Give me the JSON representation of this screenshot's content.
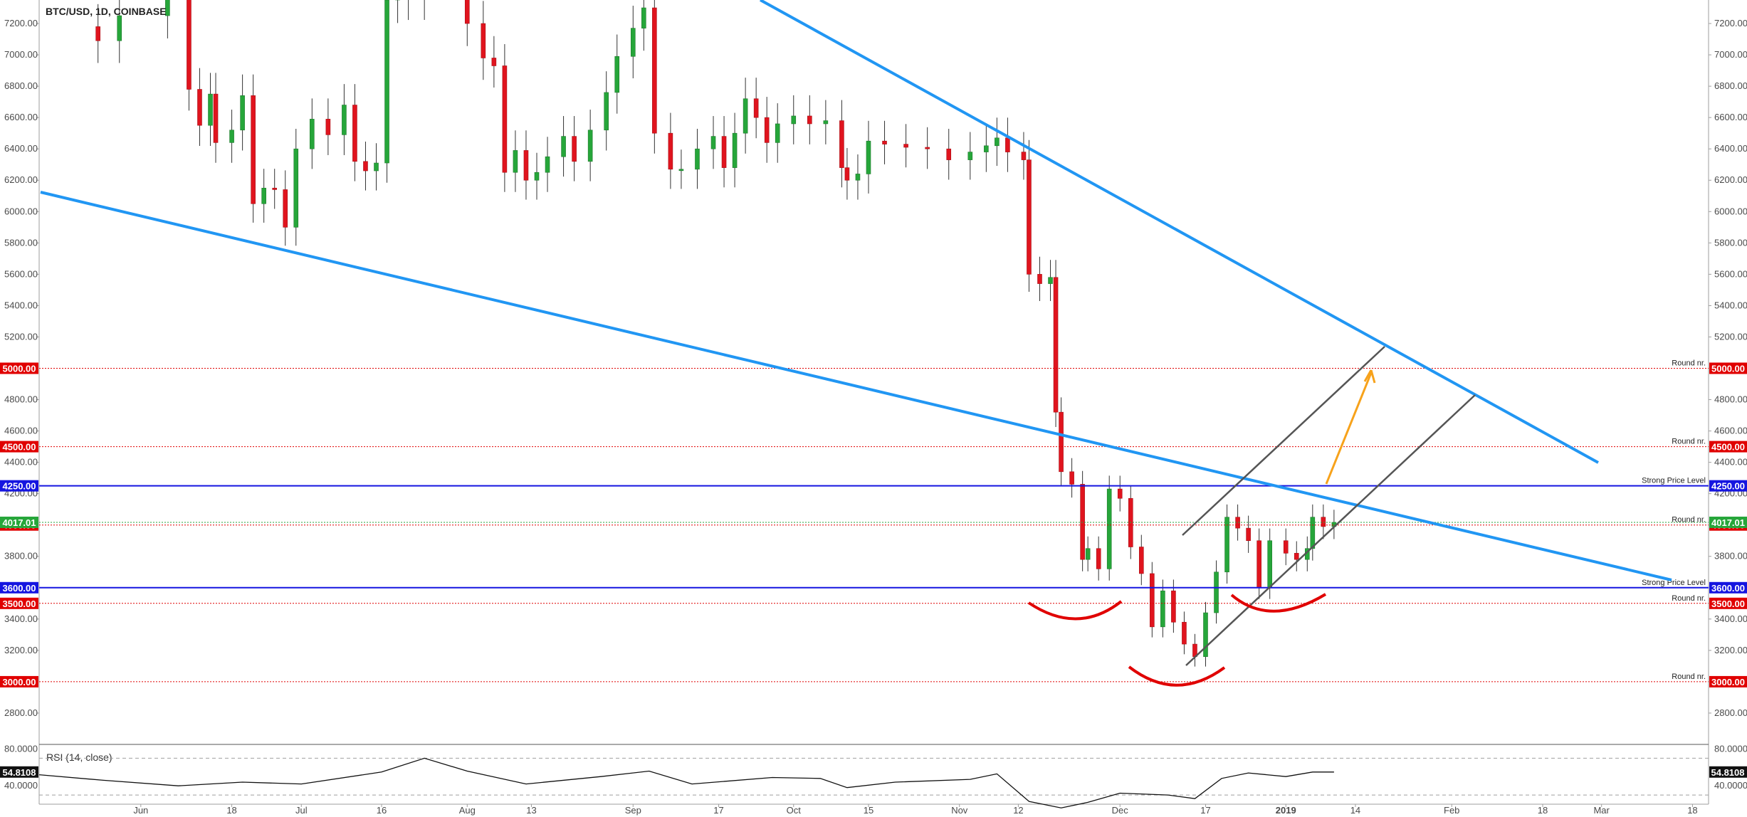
{
  "chart_data": {
    "type": "candlestick",
    "title": "BTC/USD, 1D, COINBASE",
    "ylim": [
      2600,
      7350
    ],
    "y_ticks": [
      "7200.00",
      "7000.00",
      "6800.00",
      "6600.00",
      "6400.00",
      "6200.00",
      "6000.00",
      "5800.00",
      "5600.00",
      "5400.00",
      "5200.00",
      "4800.00",
      "4600.00",
      "4400.00",
      "4200.00",
      "3800.00",
      "3400.00",
      "3200.00",
      "2800.00"
    ],
    "x_ticks": [
      "Jun",
      "18",
      "Jul",
      "16",
      "Aug",
      "13",
      "Sep",
      "17",
      "Oct",
      "15",
      "Nov",
      "12",
      "Dec",
      "17",
      "2019",
      "14",
      "Feb",
      "18",
      "Mar",
      "18"
    ],
    "x_tick_dates": [
      "2018-06-01",
      "2018-06-18",
      "2018-07-01",
      "2018-07-16",
      "2018-08-01",
      "2018-08-13",
      "2018-09-01",
      "2018-09-17",
      "2018-10-01",
      "2018-10-15",
      "2018-11-01",
      "2018-11-12",
      "2018-12-01",
      "2018-12-17",
      "2019-01-01",
      "2019-01-14",
      "2019-02-01",
      "2019-02-18",
      "2019-03-01",
      "2019-03-18"
    ],
    "x_range": [
      "2018-05-13",
      "2019-03-21"
    ],
    "current_price": {
      "label": "4017.01",
      "value": 4017.01
    },
    "levels": [
      {
        "value": 5000,
        "label": "5000.00",
        "note": "Round nr.",
        "kind": "round"
      },
      {
        "value": 4500,
        "label": "4500.00",
        "note": "Round nr.",
        "kind": "round"
      },
      {
        "value": 4250,
        "label": "4250.00",
        "note": "Strong Price Level",
        "kind": "strong"
      },
      {
        "value": 4000,
        "label": "4000.00",
        "note": "Round nr.",
        "kind": "round"
      },
      {
        "value": 3600,
        "label": "3600.00",
        "note": "Strong Price Level",
        "kind": "strong"
      },
      {
        "value": 3500,
        "label": "3500.00",
        "note": "Round nr.",
        "kind": "round"
      },
      {
        "value": 3000,
        "label": "3000.00",
        "note": "Round nr.",
        "kind": "round"
      }
    ],
    "candles_close": [
      [
        "2018-05-20",
        7180
      ],
      [
        "2018-05-24",
        7090
      ],
      [
        "2018-05-28",
        7250
      ],
      [
        "2018-06-06",
        7600
      ],
      [
        "2018-06-10",
        6780
      ],
      [
        "2018-06-12",
        6550
      ],
      [
        "2018-06-14",
        6750
      ],
      [
        "2018-06-15",
        6440
      ],
      [
        "2018-06-18",
        6520
      ],
      [
        "2018-06-20",
        6740
      ],
      [
        "2018-06-22",
        6050
      ],
      [
        "2018-06-24",
        6150
      ],
      [
        "2018-06-26",
        6140
      ],
      [
        "2018-06-28",
        5900
      ],
      [
        "2018-06-30",
        6400
      ],
      [
        "2018-07-03",
        6590
      ],
      [
        "2018-07-06",
        6490
      ],
      [
        "2018-07-09",
        6680
      ],
      [
        "2018-07-11",
        6320
      ],
      [
        "2018-07-13",
        6260
      ],
      [
        "2018-07-15",
        6310
      ],
      [
        "2018-07-17",
        7350
      ],
      [
        "2018-07-19",
        7450
      ],
      [
        "2018-07-21",
        7370
      ],
      [
        "2018-07-24",
        8300
      ],
      [
        "2018-07-28",
        8150
      ],
      [
        "2018-08-01",
        7200
      ],
      [
        "2018-08-04",
        6980
      ],
      [
        "2018-08-06",
        6930
      ],
      [
        "2018-08-08",
        6250
      ],
      [
        "2018-08-10",
        6390
      ],
      [
        "2018-08-12",
        6200
      ],
      [
        "2018-08-14",
        6250
      ],
      [
        "2018-08-16",
        6350
      ],
      [
        "2018-08-19",
        6480
      ],
      [
        "2018-08-21",
        6320
      ],
      [
        "2018-08-24",
        6520
      ],
      [
        "2018-08-27",
        6760
      ],
      [
        "2018-08-29",
        6990
      ],
      [
        "2018-09-01",
        7170
      ],
      [
        "2018-09-03",
        7300
      ],
      [
        "2018-09-05",
        6500
      ],
      [
        "2018-09-08",
        6270
      ],
      [
        "2018-09-10",
        6270
      ],
      [
        "2018-09-13",
        6400
      ],
      [
        "2018-09-16",
        6480
      ],
      [
        "2018-09-18",
        6280
      ],
      [
        "2018-09-20",
        6500
      ],
      [
        "2018-09-22",
        6720
      ],
      [
        "2018-09-24",
        6600
      ],
      [
        "2018-09-26",
        6440
      ],
      [
        "2018-09-28",
        6560
      ],
      [
        "2018-10-01",
        6610
      ],
      [
        "2018-10-04",
        6560
      ],
      [
        "2018-10-07",
        6580
      ],
      [
        "2018-10-10",
        6280
      ],
      [
        "2018-10-11",
        6200
      ],
      [
        "2018-10-13",
        6240
      ],
      [
        "2018-10-15",
        6450
      ],
      [
        "2018-10-18",
        6430
      ],
      [
        "2018-10-22",
        6410
      ],
      [
        "2018-10-26",
        6400
      ],
      [
        "2018-10-30",
        6330
      ],
      [
        "2018-11-03",
        6380
      ],
      [
        "2018-11-06",
        6420
      ],
      [
        "2018-11-08",
        6470
      ],
      [
        "2018-11-10",
        6380
      ],
      [
        "2018-11-13",
        6330
      ],
      [
        "2018-11-14",
        5600
      ],
      [
        "2018-11-16",
        5540
      ],
      [
        "2018-11-18",
        5580
      ],
      [
        "2018-11-19",
        4720
      ],
      [
        "2018-11-20",
        4340
      ],
      [
        "2018-11-22",
        4260
      ],
      [
        "2018-11-24",
        3780
      ],
      [
        "2018-11-25",
        3850
      ],
      [
        "2018-11-27",
        3720
      ],
      [
        "2018-11-29",
        4230
      ],
      [
        "2018-12-01",
        4170
      ],
      [
        "2018-12-03",
        3860
      ],
      [
        "2018-12-05",
        3690
      ],
      [
        "2018-12-07",
        3350
      ],
      [
        "2018-12-09",
        3580
      ],
      [
        "2018-12-11",
        3380
      ],
      [
        "2018-12-13",
        3240
      ],
      [
        "2018-12-15",
        3160
      ],
      [
        "2018-12-17",
        3440
      ],
      [
        "2018-12-19",
        3700
      ],
      [
        "2018-12-21",
        4050
      ],
      [
        "2018-12-23",
        3980
      ],
      [
        "2018-12-25",
        3900
      ],
      [
        "2018-12-27",
        3600
      ],
      [
        "2018-12-29",
        3900
      ],
      [
        "2019-01-01",
        3820
      ],
      [
        "2019-01-03",
        3780
      ],
      [
        "2019-01-05",
        3850
      ],
      [
        "2019-01-06",
        4050
      ],
      [
        "2019-01-08",
        3990
      ],
      [
        "2019-01-10",
        4017
      ]
    ],
    "rsi": {
      "label": "RSI (14, close)",
      "value_label": "54.8108",
      "tick_labels": [
        "80.0000",
        "40.0000"
      ],
      "ylim": [
        20,
        85
      ],
      "bands": [
        70,
        30
      ],
      "series": [
        [
          "2018-05-13",
          52
        ],
        [
          "2018-05-25",
          46
        ],
        [
          "2018-06-08",
          40
        ],
        [
          "2018-06-20",
          44
        ],
        [
          "2018-07-01",
          42
        ],
        [
          "2018-07-16",
          55
        ],
        [
          "2018-07-24",
          70
        ],
        [
          "2018-08-01",
          56
        ],
        [
          "2018-08-12",
          42
        ],
        [
          "2018-08-26",
          50
        ],
        [
          "2018-09-04",
          56
        ],
        [
          "2018-09-12",
          42
        ],
        [
          "2018-09-27",
          49
        ],
        [
          "2018-10-06",
          48
        ],
        [
          "2018-10-11",
          38
        ],
        [
          "2018-10-20",
          44
        ],
        [
          "2018-11-03",
          47
        ],
        [
          "2018-11-08",
          53
        ],
        [
          "2018-11-14",
          23
        ],
        [
          "2018-11-20",
          16
        ],
        [
          "2018-11-25",
          22
        ],
        [
          "2018-12-01",
          32
        ],
        [
          "2018-12-10",
          30
        ],
        [
          "2018-12-15",
          26
        ],
        [
          "2018-12-20",
          48
        ],
        [
          "2018-12-25",
          54
        ],
        [
          "2019-01-01",
          50
        ],
        [
          "2019-01-06",
          55
        ],
        [
          "2019-01-10",
          55
        ]
      ]
    }
  }
}
